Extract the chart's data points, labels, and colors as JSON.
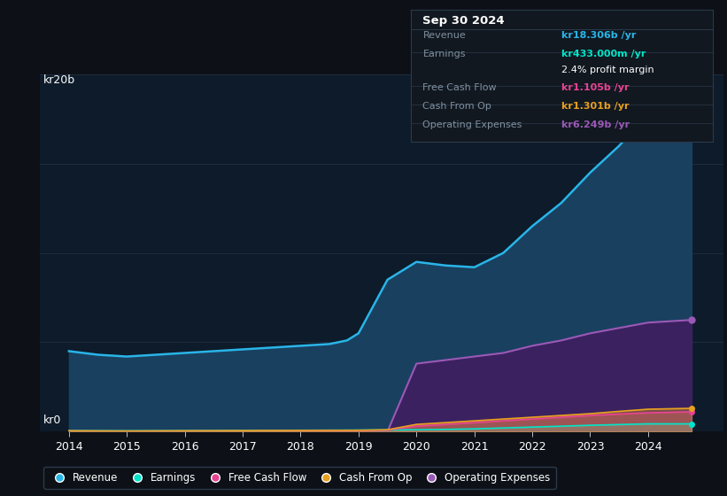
{
  "bg_color": "#0d1117",
  "plot_bg_color": "#0d1b2a",
  "grid_color": "#1e2d3d",
  "text_color": "#ffffff",
  "dim_text_color": "#8090a0",
  "years": [
    2014,
    2014.5,
    2015,
    2015.5,
    2016,
    2016.5,
    2017,
    2017.5,
    2018,
    2018.5,
    2018.8,
    2019,
    2019.5,
    2020,
    2020.5,
    2021,
    2021.5,
    2022,
    2022.5,
    2023,
    2023.5,
    2024,
    2024.75
  ],
  "revenue": [
    4.5,
    4.3,
    4.2,
    4.3,
    4.4,
    4.5,
    4.6,
    4.7,
    4.8,
    4.9,
    5.1,
    5.5,
    8.5,
    9.5,
    9.3,
    9.2,
    10.0,
    11.5,
    12.8,
    14.5,
    16.0,
    17.8,
    18.3
  ],
  "earnings": [
    0.05,
    0.045,
    0.04,
    0.045,
    0.05,
    0.055,
    0.06,
    0.065,
    0.07,
    0.075,
    0.078,
    0.08,
    0.09,
    0.1,
    0.12,
    0.15,
    0.2,
    0.25,
    0.3,
    0.35,
    0.39,
    0.43,
    0.43
  ],
  "free_cash_flow": [
    0.03,
    0.025,
    0.02,
    0.025,
    0.03,
    0.03,
    0.03,
    0.035,
    0.04,
    0.045,
    0.048,
    0.05,
    0.08,
    0.3,
    0.4,
    0.5,
    0.6,
    0.7,
    0.8,
    0.9,
    0.98,
    1.05,
    1.105
  ],
  "cash_from_op": [
    0.04,
    0.035,
    0.03,
    0.035,
    0.04,
    0.045,
    0.05,
    0.055,
    0.06,
    0.065,
    0.068,
    0.07,
    0.1,
    0.4,
    0.5,
    0.6,
    0.7,
    0.8,
    0.9,
    1.0,
    1.13,
    1.25,
    1.301
  ],
  "operating_expenses": [
    0.0,
    0.0,
    0.0,
    0.0,
    0.0,
    0.0,
    0.0,
    0.0,
    0.0,
    0.0,
    0.0,
    0.0,
    0.0,
    3.8,
    4.0,
    4.2,
    4.4,
    4.8,
    5.1,
    5.5,
    5.8,
    6.1,
    6.249
  ],
  "revenue_color": "#29b5e8",
  "earnings_color": "#00e5c9",
  "free_cash_flow_color": "#e84393",
  "cash_from_op_color": "#e8a020",
  "operating_expenses_color": "#9b59b6",
  "revenue_fill": "#1a4060",
  "operating_expenses_fill": "#3d2060",
  "ylim": [
    0,
    20
  ],
  "xlabel_ticks": [
    2014,
    2015,
    2016,
    2017,
    2018,
    2019,
    2020,
    2021,
    2022,
    2023,
    2024
  ],
  "info_box": {
    "date": "Sep 30 2024",
    "revenue_label": "Revenue",
    "revenue_value": "kr18.306b /yr",
    "earnings_label": "Earnings",
    "earnings_value": "kr433.000m /yr",
    "profit_margin": "2.4% profit margin",
    "fcf_label": "Free Cash Flow",
    "fcf_value": "kr1.105b /yr",
    "cfop_label": "Cash From Op",
    "cfop_value": "kr1.301b /yr",
    "opex_label": "Operating Expenses",
    "opex_value": "kr6.249b /yr"
  },
  "legend_items": [
    "Revenue",
    "Earnings",
    "Free Cash Flow",
    "Cash From Op",
    "Operating Expenses"
  ],
  "legend_colors": [
    "#29b5e8",
    "#00e5c9",
    "#e84393",
    "#e8a020",
    "#9b59b6"
  ]
}
